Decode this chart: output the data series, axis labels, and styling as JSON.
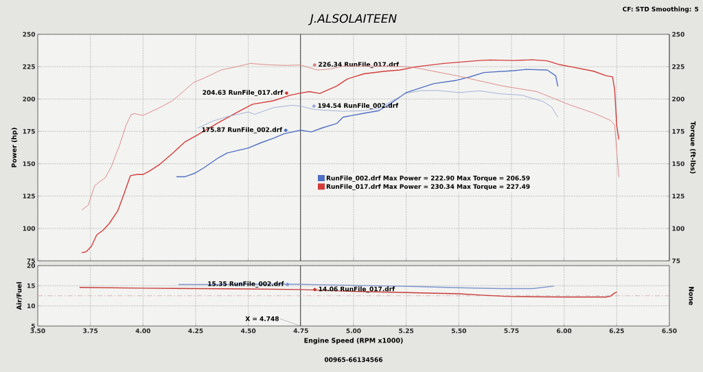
{
  "chart_data": [
    {
      "type": "line",
      "title": "J.ALSOLAITEEN",
      "ylabel": "Power (hp)",
      "y2label": "Torque (ft-lbs)",
      "annotations": [
        {
          "text": "226.34 RunFile_017.drf",
          "x": 4.815,
          "y": 226.34
        },
        {
          "text": "204.63 RunFile_017.drf",
          "x": 4.682,
          "y": 204.63
        },
        {
          "text": "194.54 RunFile_002.drf",
          "x": 4.812,
          "y": 194.54
        },
        {
          "text": "175.87 RunFile_002.drf",
          "x": 4.678,
          "y": 175.87
        },
        "CF: STD Smoothing: 5"
      ],
      "xlim": [
        3.5,
        6.5
      ],
      "xticks": [
        3.5,
        3.75,
        4,
        4.25,
        4.5,
        4.75,
        5,
        5.25,
        5.5,
        5.75,
        6,
        6.25,
        6.5
      ],
      "ylim": [
        75,
        250
      ],
      "yticks": [
        75,
        100,
        125,
        150,
        175,
        200,
        225,
        250
      ],
      "y2lim": [
        75,
        250
      ],
      "y2ticks": [
        75,
        100,
        125,
        150,
        175,
        200,
        225,
        250
      ],
      "tick_labels": "y",
      "grid": true,
      "legend": "center",
      "line_style": "solid",
      "ref_lines": [
        {
          "axis": "x",
          "value": 4.748,
          "color": "#222222"
        }
      ],
      "series": [
        {
          "name": "RunFile_002.drf Max Power = 222.90 Max Torque = 206.59",
          "color": "#4f6fc2",
          "x": [
            4.16,
            4.2,
            4.245,
            4.29,
            4.36,
            4.4,
            4.5,
            4.56,
            4.62,
            4.67,
            4.748,
            4.8,
            4.85,
            4.92,
            4.95,
            5.05,
            5.12,
            5.18,
            5.25,
            5.38,
            5.49,
            5.55,
            5.62,
            5.76,
            5.82,
            5.92,
            5.96,
            5.97
          ],
          "values": [
            140,
            140,
            142.6,
            147,
            154.8,
            158.3,
            162.2,
            166.2,
            169.7,
            173.2,
            175.9,
            174.6,
            177.6,
            181.1,
            186,
            189,
            191,
            197,
            205,
            211.9,
            214.5,
            217,
            220.5,
            221.9,
            222.9,
            222.4,
            218,
            210
          ]
        },
        {
          "color": "#9aaad6",
          "axis": "y2",
          "x": [
            4.26,
            4.33,
            4.4,
            4.5,
            4.53,
            4.62,
            4.71,
            4.748,
            4.81,
            4.85,
            4.95,
            5.05,
            5.12,
            5.2,
            5.25,
            5.32,
            5.4,
            5.5,
            5.6,
            5.7,
            5.8,
            5.9,
            5.94,
            5.97
          ],
          "values": [
            177.6,
            182.9,
            186.4,
            190,
            188.2,
            193.4,
            195.2,
            194.5,
            192,
            191.5,
            190.5,
            191,
            193,
            200,
            204.5,
            206.5,
            206.6,
            205,
            206.3,
            204,
            203,
            198,
            194,
            186
          ]
        },
        {
          "name": "RunFile_017.drf Max Power = 230.34 Max Torque = 227.49",
          "color": "#d23c3a",
          "x": [
            3.71,
            3.73,
            3.755,
            3.78,
            3.81,
            3.84,
            3.88,
            3.91,
            3.94,
            3.97,
            4.0,
            4.03,
            4.08,
            4.14,
            4.2,
            4.25,
            4.35,
            4.45,
            4.52,
            4.62,
            4.7,
            4.748,
            4.79,
            4.84,
            4.92,
            4.97,
            5.05,
            5.15,
            5.22,
            5.3,
            5.43,
            5.6,
            5.65,
            5.76,
            5.85,
            5.92,
            5.98,
            6.03,
            6.14,
            6.2,
            6.23,
            6.24,
            6.25,
            6.26
          ],
          "values": [
            81.3,
            82,
            86.3,
            95,
            98.6,
            103.9,
            113.6,
            126.8,
            140.8,
            141.7,
            141.7,
            144.3,
            149.6,
            158,
            167,
            171.5,
            181,
            190,
            196,
            198.7,
            203,
            204.6,
            205.7,
            204.3,
            210,
            215.5,
            219.5,
            221.5,
            222.4,
            225,
            227.5,
            229.8,
            230.2,
            229.8,
            230.3,
            229.5,
            226.5,
            225,
            221.5,
            218,
            217.2,
            207.5,
            179.5,
            169
          ]
        },
        {
          "color": "#d9807e",
          "axis": "y2",
          "x": [
            3.71,
            3.74,
            3.77,
            3.79,
            3.82,
            3.85,
            3.89,
            3.92,
            3.944,
            3.96,
            4.0,
            4.08,
            4.14,
            4.19,
            4.24,
            4.29,
            4.37,
            4.445,
            4.51,
            4.6,
            4.68,
            4.748,
            4.81,
            4.83,
            4.89,
            4.95,
            5.11,
            5.25,
            5.3,
            5.49,
            5.71,
            5.87,
            5.95,
            6.03,
            6.14,
            6.22,
            6.24,
            6.25,
            6.26
          ],
          "values": [
            114.4,
            118,
            133,
            135.6,
            139,
            148,
            165,
            180,
            188.2,
            188.7,
            187.3,
            193.4,
            198.7,
            205.7,
            212.7,
            216.2,
            222.4,
            225,
            227.5,
            226.4,
            226,
            226.3,
            223.2,
            222.4,
            223.2,
            225.5,
            225.5,
            225,
            224,
            218,
            210,
            205.8,
            200.5,
            195.3,
            189.2,
            183.5,
            180,
            160,
            140
          ]
        }
      ]
    },
    {
      "type": "line",
      "xlabel": "Engine Speed (RPM x1000)",
      "ylabel": "Air/Fuel",
      "y2label": "None",
      "annotations": [
        {
          "text": "14.06 RunFile_017.drf",
          "x": 4.816,
          "y": 14.06
        },
        {
          "text": "15.35 RunFile_002.drf",
          "x": 4.686,
          "y": 15.35
        },
        "00965-66134566"
      ],
      "xlim": [
        3.5,
        6.5
      ],
      "xticks": [
        {
          "value": 3.5,
          "label": "3.50"
        },
        {
          "value": 3.75,
          "label": "3.75"
        },
        {
          "value": 4,
          "label": "4.00"
        },
        {
          "value": 4.25,
          "label": "4.25"
        },
        {
          "value": 4.5,
          "label": "4.50"
        },
        {
          "value": 4.75,
          "label": "4.75"
        },
        {
          "value": 5,
          "label": "5.00"
        },
        {
          "value": 5.25,
          "label": "5.25"
        },
        {
          "value": 5.5,
          "label": "5.50"
        },
        {
          "value": 5.75,
          "label": "5.75"
        },
        {
          "value": 6,
          "label": "6.00"
        },
        {
          "value": 6.25,
          "label": "6.25"
        },
        {
          "value": 6.5,
          "label": "6.50"
        }
      ],
      "ylim": [
        5,
        20
      ],
      "yticks": [
        5,
        10,
        15,
        20
      ],
      "grid": true,
      "line_style": "solid",
      "ref_lines": [
        {
          "axis": "x",
          "value": 4.748,
          "label": "X = 4.748",
          "color": "#222222"
        },
        {
          "axis": "y",
          "value": 12.5,
          "color": "#c49a9a",
          "line_style": "dashed"
        }
      ],
      "series": [
        {
          "color": "#7c95cf",
          "x": [
            4.17,
            4.4,
            4.6,
            4.748,
            4.9,
            5.1,
            5.3,
            5.5,
            5.7,
            5.85,
            5.95
          ],
          "values": [
            15.3,
            15.3,
            15.4,
            15.35,
            15.2,
            15.0,
            14.8,
            14.5,
            14.3,
            14.3,
            14.9
          ]
        },
        {
          "color": "#c83a38",
          "x": [
            3.7,
            4.0,
            4.25,
            4.5,
            4.748,
            5.0,
            5.25,
            5.5,
            5.6,
            5.75,
            6.0,
            6.2,
            6.22,
            6.24,
            6.25
          ],
          "values": [
            14.6,
            14.4,
            14.3,
            14.2,
            14.06,
            13.6,
            13.3,
            13.0,
            12.7,
            12.3,
            12.2,
            12.2,
            12.4,
            13.2,
            13.4
          ]
        }
      ]
    }
  ]
}
